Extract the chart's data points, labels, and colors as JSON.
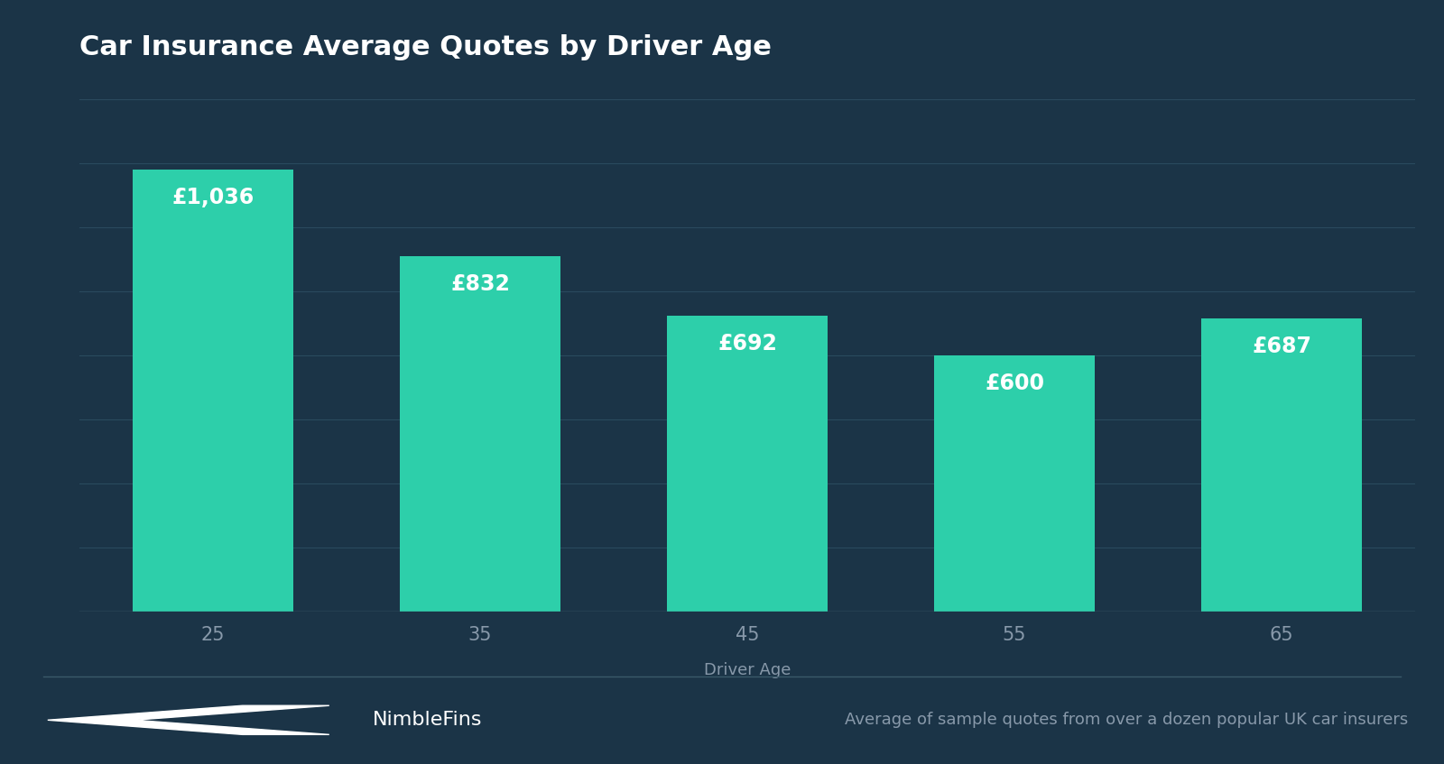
{
  "title": "Car Insurance Average Quotes by Driver Age",
  "categories": [
    "25",
    "35",
    "45",
    "55",
    "65"
  ],
  "values": [
    1036,
    832,
    692,
    600,
    687
  ],
  "labels": [
    "£1,036",
    "£832",
    "£692",
    "£600",
    "£687"
  ],
  "bar_color": "#2dcfaa",
  "background_color": "#1b3447",
  "grid_color": "#2a4a5e",
  "text_color": "#ffffff",
  "muted_text_color": "#8899aa",
  "xlabel": "Driver Age",
  "ylim": [
    0,
    1200
  ],
  "title_fontsize": 22,
  "label_fontsize": 17,
  "tick_fontsize": 15,
  "xlabel_fontsize": 13,
  "footer_right": "Average of sample quotes from over a dozen popular UK car insurers",
  "footer_fontsize": 13,
  "nimblefins_fontsize": 16
}
